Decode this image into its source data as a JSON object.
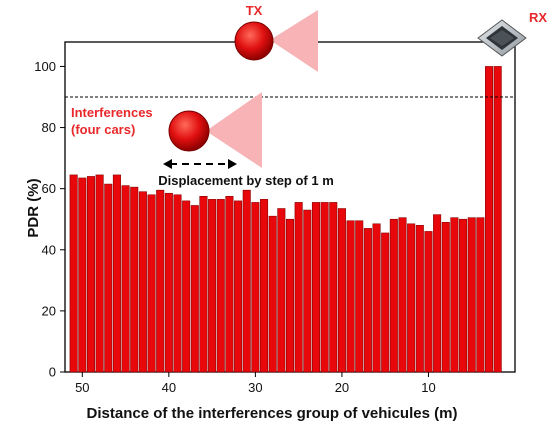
{
  "chart_data": {
    "type": "bar",
    "xlabel": "Distance of the interferences group of vehicules (m)",
    "ylabel": "PDR (%)",
    "xlim": [
      52,
      0
    ],
    "ylim": [
      0,
      108
    ],
    "x_ticks": [
      50,
      40,
      30,
      20,
      10
    ],
    "y_ticks": [
      0,
      20,
      40,
      60,
      80,
      100
    ],
    "threshold": 90,
    "bar_color": "#e8080c",
    "bar_edge_color": "#8a0000",
    "x": [
      51,
      50,
      49,
      48,
      47,
      46,
      45,
      44,
      43,
      42,
      41,
      40,
      39,
      38,
      37,
      36,
      35,
      34,
      33,
      32,
      31,
      30,
      29,
      28,
      27,
      26,
      25,
      24,
      23,
      22,
      21,
      20,
      19,
      18,
      17,
      16,
      15,
      14,
      13,
      12,
      11,
      10,
      9,
      8,
      7,
      6,
      5,
      4,
      3,
      2,
      1
    ],
    "values": [
      64.5,
      63.5,
      64,
      64.5,
      61.5,
      64.5,
      61,
      60.5,
      59,
      58,
      59.5,
      58.5,
      58,
      56,
      54.5,
      57.5,
      56.5,
      56.5,
      57.5,
      56,
      59.5,
      55.5,
      56.5,
      51,
      53.5,
      50,
      55.5,
      53,
      55.5,
      55.5,
      55.5,
      53.5,
      49.5,
      49.5,
      47,
      48.5,
      45.5,
      50,
      50.5,
      48.5,
      48,
      46,
      51.5,
      49,
      50.5,
      50,
      50.5,
      50.5,
      100,
      100,
      null
    ]
  },
  "annotations": {
    "tx_label": "TX",
    "rx_label": "RX",
    "interference_line1": "Interferences",
    "interference_line2": "(four cars)",
    "displacement_label": "Displacement by step of 1 m"
  },
  "colors": {
    "accent": "#e8282b",
    "car": "#e01010",
    "beam": "#f7b3b5",
    "rx_device": "#3a3f44"
  },
  "icons": {
    "tx_car": "red-car-circle-icon",
    "interference_car": "red-car-circle-icon",
    "rx_device": "receiver-device-icon"
  }
}
